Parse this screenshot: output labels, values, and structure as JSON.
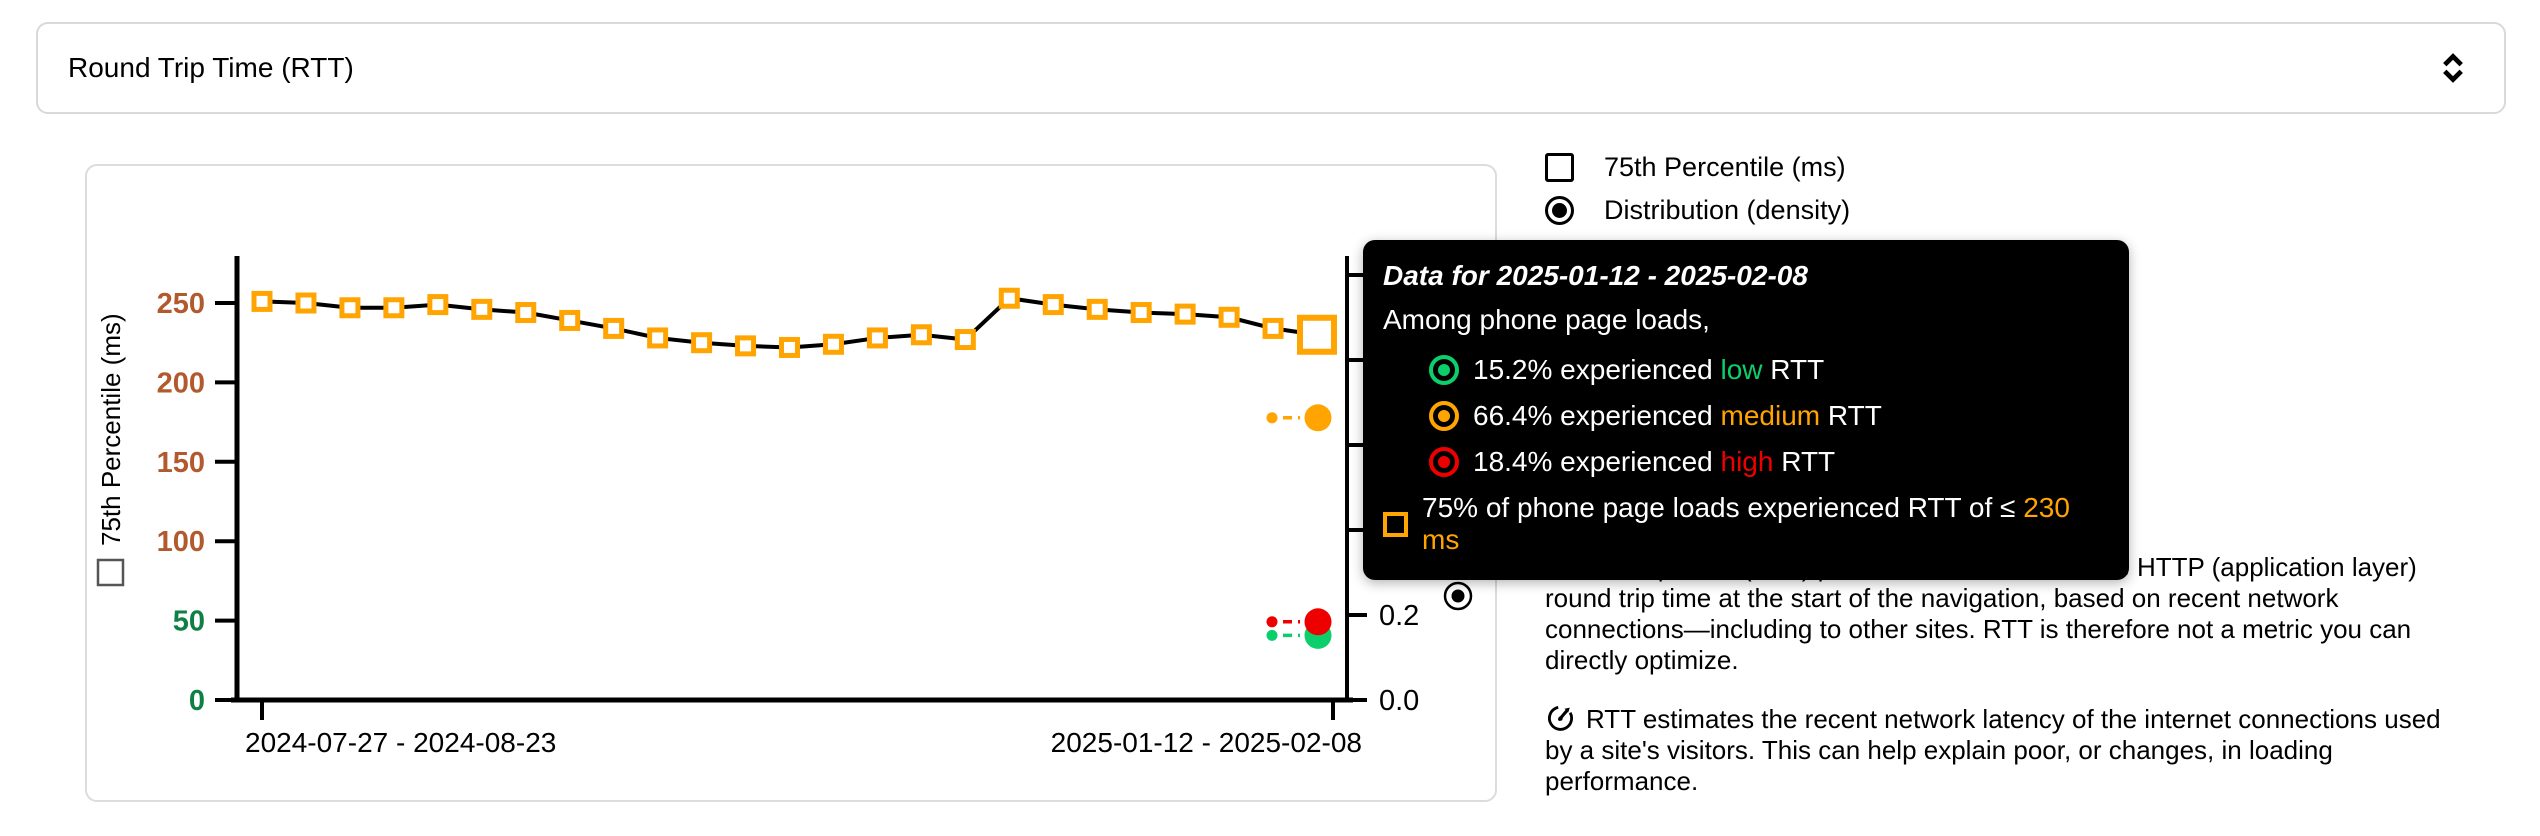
{
  "metric_select": {
    "value": "Round Trip Time (RTT)"
  },
  "legend": {
    "items": [
      {
        "type": "checkbox",
        "checked": false,
        "label": "75th Percentile (ms)"
      },
      {
        "type": "radio",
        "checked": true,
        "label": "Distribution (density)"
      }
    ]
  },
  "tooltip": {
    "title": "Data for 2025-01-12 - 2025-02-08",
    "subtitle": "Among phone page loads,",
    "rows": [
      {
        "pre": "15.2% experienced ",
        "word": "low",
        "post": " RTT",
        "color": "#0cce6b"
      },
      {
        "pre": "66.4% experienced ",
        "word": "medium",
        "post": " RTT",
        "color": "#ffa400"
      },
      {
        "pre": "18.4% experienced ",
        "word": "high",
        "post": " RTT",
        "color": "#ee0000"
      }
    ],
    "threshold": {
      "pre": "75% of phone page loads experienced RTT of ≤ ",
      "word": "230 ms",
      "post": "",
      "color": "#ffa400"
    }
  },
  "description": {
    "p1_link": "Round Trip Time (RTT)",
    "p1_rest": " provides an estimate of the HTTP (application layer) round trip time at the start of the navigation, based on recent network connections—including to other sites. RTT is therefore not a metric you can directly optimize.",
    "p2": "RTT estimates the recent network latency of the internet connections used by a site's visitors. This can help explain poor, or changes, in loading performance."
  },
  "chart_data": {
    "type": "line",
    "title": "",
    "x_tick_labels": [
      "2024-07-27 - 2024-08-23",
      "2025-01-12 - 2025-02-08"
    ],
    "left_axis": {
      "label": "75th Percentile (ms)",
      "ylim": [
        0,
        265
      ],
      "ticks": [
        {
          "value": 0,
          "color": "#0e8043"
        },
        {
          "value": 50,
          "color": "#0e8043"
        },
        {
          "value": 100,
          "color": "#b25a2e"
        },
        {
          "value": 150,
          "color": "#b25a2e"
        },
        {
          "value": 200,
          "color": "#b25a2e"
        },
        {
          "value": 250,
          "color": "#b25a2e"
        }
      ]
    },
    "right_axis": {
      "label": "Distribution (density)",
      "ylim": [
        0,
        1
      ],
      "ticks": [
        0.0,
        0.2,
        0.4,
        0.6,
        0.8,
        1.0
      ],
      "visible_tick_labels": [
        "0.0",
        "0.2"
      ]
    },
    "series": [
      {
        "name": "75th Percentile (ms)",
        "marker": "open-square",
        "marker_color": "#ffa400",
        "line_color": "#000000",
        "values": [
          251,
          250,
          247,
          247,
          249,
          246,
          244,
          239,
          234,
          228,
          225,
          223,
          222,
          224,
          228,
          230,
          227,
          253,
          249,
          246,
          244,
          243,
          241,
          234,
          230
        ],
        "highlighted_point_index": 24,
        "highlighted_point_value": 230
      }
    ],
    "density_points": [
      {
        "name": "low",
        "color": "#0cce6b",
        "value": 0.152
      },
      {
        "name": "medium",
        "color": "#ffa400",
        "value": 0.664
      },
      {
        "name": "high",
        "color": "#ee0000",
        "value": 0.184
      }
    ],
    "grid": false,
    "legend_position": "outside-top-right"
  }
}
